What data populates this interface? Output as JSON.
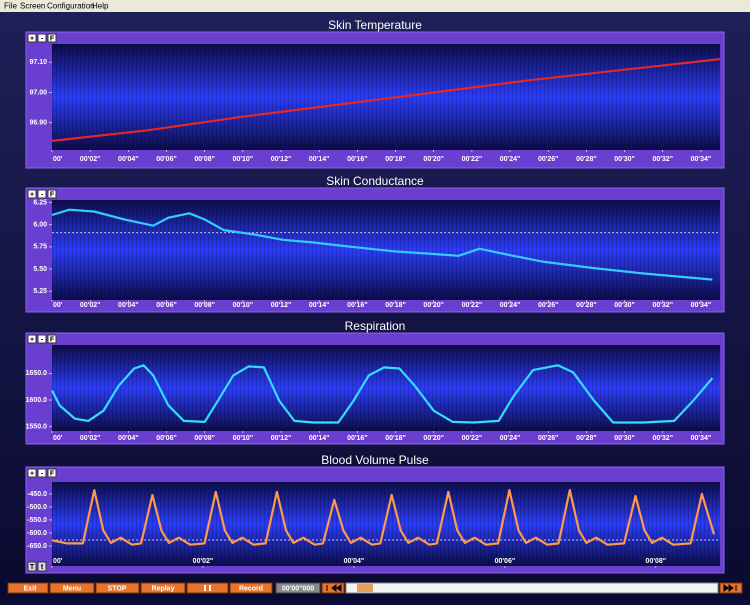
{
  "menu": [
    "File",
    "Screen",
    "Configuration",
    "Help"
  ],
  "panel_buttons": [
    "+",
    "-",
    "F"
  ],
  "bvp_buttons": [
    "T",
    "t"
  ],
  "toolbar": {
    "buttons": [
      "Exit",
      "Menu",
      "STOP",
      "Replay",
      "Record"
    ],
    "time": "00'00\"000"
  },
  "chart_data": [
    {
      "type": "line",
      "title": "Skin Temperature",
      "color": "#e02828",
      "x": [
        0,
        5,
        10,
        15,
        20,
        25,
        30,
        35
      ],
      "values": [
        96.84,
        96.875,
        96.92,
        96.96,
        97.0,
        97.04,
        97.075,
        97.11
      ],
      "xlim": [
        0,
        35
      ],
      "ylim": [
        96.81,
        97.16
      ],
      "xticks": [
        {
          "value": 0,
          "label": "00'"
        },
        {
          "value": 2,
          "label": "00'02\""
        },
        {
          "value": 4,
          "label": "00'04\""
        },
        {
          "value": 6,
          "label": "00'06\""
        },
        {
          "value": 8,
          "label": "00'08\""
        },
        {
          "value": 10,
          "label": "00'10\""
        },
        {
          "value": 12,
          "label": "00'12\""
        },
        {
          "value": 14,
          "label": "00'14\""
        },
        {
          "value": 16,
          "label": "00'16\""
        },
        {
          "value": 18,
          "label": "00'18\""
        },
        {
          "value": 20,
          "label": "00'20\""
        },
        {
          "value": 22,
          "label": "00'22\""
        },
        {
          "value": 24,
          "label": "00'24\""
        },
        {
          "value": 26,
          "label": "00'26\""
        },
        {
          "value": 28,
          "label": "00'28\""
        },
        {
          "value": 30,
          "label": "00'30\""
        },
        {
          "value": 32,
          "label": "00'32\""
        },
        {
          "value": 34,
          "label": "00'34\""
        }
      ],
      "yticks": [
        {
          "value": 96.9,
          "label": "96.90"
        },
        {
          "value": 97.0,
          "label": "97.00"
        },
        {
          "value": 97.1,
          "label": "97.10"
        }
      ]
    },
    {
      "type": "line",
      "title": "Skin Conductance",
      "color": "#33ccff",
      "x": [
        0,
        0.9,
        2.2,
        3.8,
        5.3,
        6.1,
        7.2,
        8.0,
        9.0,
        10.6,
        12.1,
        13.7,
        15.3,
        17.9,
        20.0,
        21.3,
        22.4,
        23.7,
        25.8,
        28.4,
        31.0,
        33.6,
        34.6
      ],
      "values": [
        6.11,
        6.17,
        6.15,
        6.06,
        5.99,
        6.08,
        6.13,
        6.06,
        5.94,
        5.89,
        5.83,
        5.8,
        5.76,
        5.7,
        5.67,
        5.65,
        5.73,
        5.67,
        5.58,
        5.51,
        5.45,
        5.4,
        5.38
      ],
      "threshold": 5.91,
      "xlim": [
        0,
        35
      ],
      "ylim": [
        5.15,
        6.28
      ],
      "xticks": [
        {
          "value": 0,
          "label": "00'"
        },
        {
          "value": 2,
          "label": "00'02\""
        },
        {
          "value": 4,
          "label": "00'04\""
        },
        {
          "value": 6,
          "label": "00'06\""
        },
        {
          "value": 8,
          "label": "00'08\""
        },
        {
          "value": 10,
          "label": "00'10\""
        },
        {
          "value": 12,
          "label": "00'12\""
        },
        {
          "value": 14,
          "label": "00'14\""
        },
        {
          "value": 16,
          "label": "00'16\""
        },
        {
          "value": 18,
          "label": "00'18\""
        },
        {
          "value": 20,
          "label": "00'20\""
        },
        {
          "value": 22,
          "label": "00'22\""
        },
        {
          "value": 24,
          "label": "00'24\""
        },
        {
          "value": 26,
          "label": "00'26\""
        },
        {
          "value": 28,
          "label": "00'28\""
        },
        {
          "value": 30,
          "label": "00'30\""
        },
        {
          "value": 32,
          "label": "00'32\""
        },
        {
          "value": 34,
          "label": "00'34\""
        }
      ],
      "yticks": [
        5.25,
        {
          "value": 5.5,
          "label": "5.50"
        },
        5.75,
        {
          "value": 6.0,
          "label": "6.00"
        },
        6.25
      ]
    },
    {
      "type": "line",
      "title": "Respiration",
      "color": "#33ddff",
      "x": [
        0,
        0.4,
        1.2,
        1.9,
        2.7,
        3.5,
        4.3,
        4.8,
        5.3,
        6.1,
        6.9,
        8.0,
        8.7,
        9.5,
        10.3,
        11.1,
        11.9,
        12.7,
        13.7,
        15.0,
        15.8,
        16.6,
        17.4,
        18.2,
        19.0,
        20.0,
        21.0,
        22.1,
        23.4,
        24.2,
        25.2,
        26.5,
        27.3,
        28.4,
        29.4,
        31.0,
        32.6,
        33.6,
        34.6
      ],
      "values": [
        1618,
        1590,
        1565,
        1561,
        1580,
        1627,
        1659,
        1665,
        1646,
        1590,
        1561,
        1559,
        1599,
        1646,
        1663,
        1661,
        1599,
        1561,
        1558,
        1558,
        1599,
        1646,
        1661,
        1659,
        1627,
        1580,
        1559,
        1558,
        1561,
        1608,
        1656,
        1665,
        1652,
        1599,
        1558,
        1558,
        1561,
        1599,
        1641
      ],
      "xlim": [
        0,
        35
      ],
      "ylim": [
        1542,
        1703
      ],
      "xticks": [
        {
          "value": 0,
          "label": "00'"
        },
        {
          "value": 2,
          "label": "00'02\""
        },
        {
          "value": 4,
          "label": "00'04\""
        },
        {
          "value": 6,
          "label": "00'06\""
        },
        {
          "value": 8,
          "label": "00'08\""
        },
        {
          "value": 10,
          "label": "00'10\""
        },
        {
          "value": 12,
          "label": "00'12\""
        },
        {
          "value": 14,
          "label": "00'14\""
        },
        {
          "value": 16,
          "label": "00'16\""
        },
        {
          "value": 18,
          "label": "00'18\""
        },
        {
          "value": 20,
          "label": "00'20\""
        },
        {
          "value": 22,
          "label": "00'22\""
        },
        {
          "value": 24,
          "label": "00'24\""
        },
        {
          "value": 26,
          "label": "00'26\""
        },
        {
          "value": 28,
          "label": "00'28\""
        },
        {
          "value": 30,
          "label": "00'30\""
        },
        {
          "value": 32,
          "label": "00'32\""
        },
        {
          "value": 34,
          "label": "00'34\""
        }
      ],
      "yticks": [
        {
          "value": 1550,
          "label": "1550.0"
        },
        {
          "value": 1600,
          "label": "1600.0"
        },
        {
          "value": 1650,
          "label": "1650.0"
        }
      ]
    },
    {
      "type": "line",
      "title": "Blood Volume Pulse",
      "color": "#ff9a4a",
      "x": [
        0.0,
        0.2,
        0.41,
        0.56,
        0.68,
        0.78,
        0.91,
        1.06,
        1.18,
        1.33,
        1.45,
        1.55,
        1.68,
        1.83,
        2.02,
        2.17,
        2.29,
        2.39,
        2.52,
        2.67,
        2.83,
        2.98,
        3.1,
        3.2,
        3.33,
        3.48,
        3.59,
        3.74,
        3.86,
        3.96,
        4.09,
        4.24,
        4.35,
        4.5,
        4.62,
        4.72,
        4.85,
        5.0,
        5.1,
        5.25,
        5.37,
        5.47,
        5.6,
        5.75,
        5.91,
        6.06,
        6.18,
        6.28,
        6.41,
        6.56,
        6.71,
        6.86,
        6.98,
        7.08,
        7.21,
        7.36,
        7.58,
        7.73,
        7.85,
        7.95,
        8.08,
        8.23,
        8.46,
        8.61,
        8.77
      ],
      "values": [
        -628,
        -640,
        -640,
        -435,
        -590,
        -638,
        -618,
        -645,
        -640,
        -454,
        -590,
        -638,
        -618,
        -645,
        -640,
        -442,
        -590,
        -638,
        -618,
        -645,
        -640,
        -442,
        -590,
        -638,
        -618,
        -645,
        -640,
        -473,
        -590,
        -638,
        -618,
        -645,
        -640,
        -454,
        -590,
        -638,
        -618,
        -645,
        -640,
        -442,
        -590,
        -638,
        -618,
        -645,
        -640,
        -435,
        -590,
        -638,
        -618,
        -645,
        -640,
        -435,
        -590,
        -638,
        -618,
        -645,
        -640,
        -458,
        -590,
        -638,
        -618,
        -645,
        -640,
        -450,
        -605
      ],
      "threshold": -627,
      "xlim": [
        0,
        8.85
      ],
      "ylim": [
        -727,
        -404
      ],
      "xticks": [
        {
          "value": 0,
          "label": "00'"
        },
        {
          "value": 2,
          "label": "00'02\""
        },
        {
          "value": 4,
          "label": "00'04\""
        },
        {
          "value": 6,
          "label": "00'06\""
        },
        {
          "value": 8,
          "label": "00'08\""
        }
      ],
      "yticks": [
        {
          "value": -650,
          "label": "-650.0"
        },
        {
          "value": -600,
          "label": "-600.0"
        },
        {
          "value": -550,
          "label": "-550.0"
        },
        {
          "value": -500,
          "label": "-500.0"
        },
        {
          "value": -450,
          "label": "-450.0"
        }
      ]
    }
  ]
}
